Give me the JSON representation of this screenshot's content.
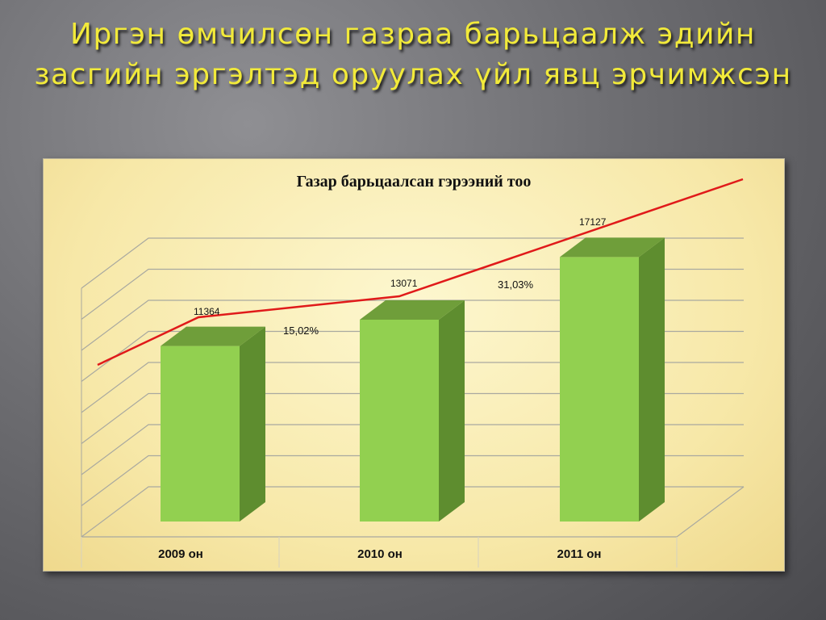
{
  "slide": {
    "title": "Иргэн өмчилсөн газраа  барьцаалж эдийн засгийн эргэлтэд оруулах үйл явц эрчимжсэн"
  },
  "colors": {
    "bar_front": "#92d050",
    "bar_side": "#5e8d2f",
    "bar_top": "#6f9e3a",
    "trend_line": "#e01a1a",
    "grid": "#a9a9a0"
  },
  "chart_data": {
    "type": "bar",
    "title": "Газар барьцаалсан гэрээний тоо",
    "categories": [
      "2009 он",
      "2010 он",
      "2011 он"
    ],
    "values": [
      11364,
      13071,
      17127
    ],
    "growth_labels": [
      "15,02%",
      "31,03%"
    ],
    "trend_line": true,
    "grid": true,
    "xlabel": "",
    "ylabel": ""
  }
}
